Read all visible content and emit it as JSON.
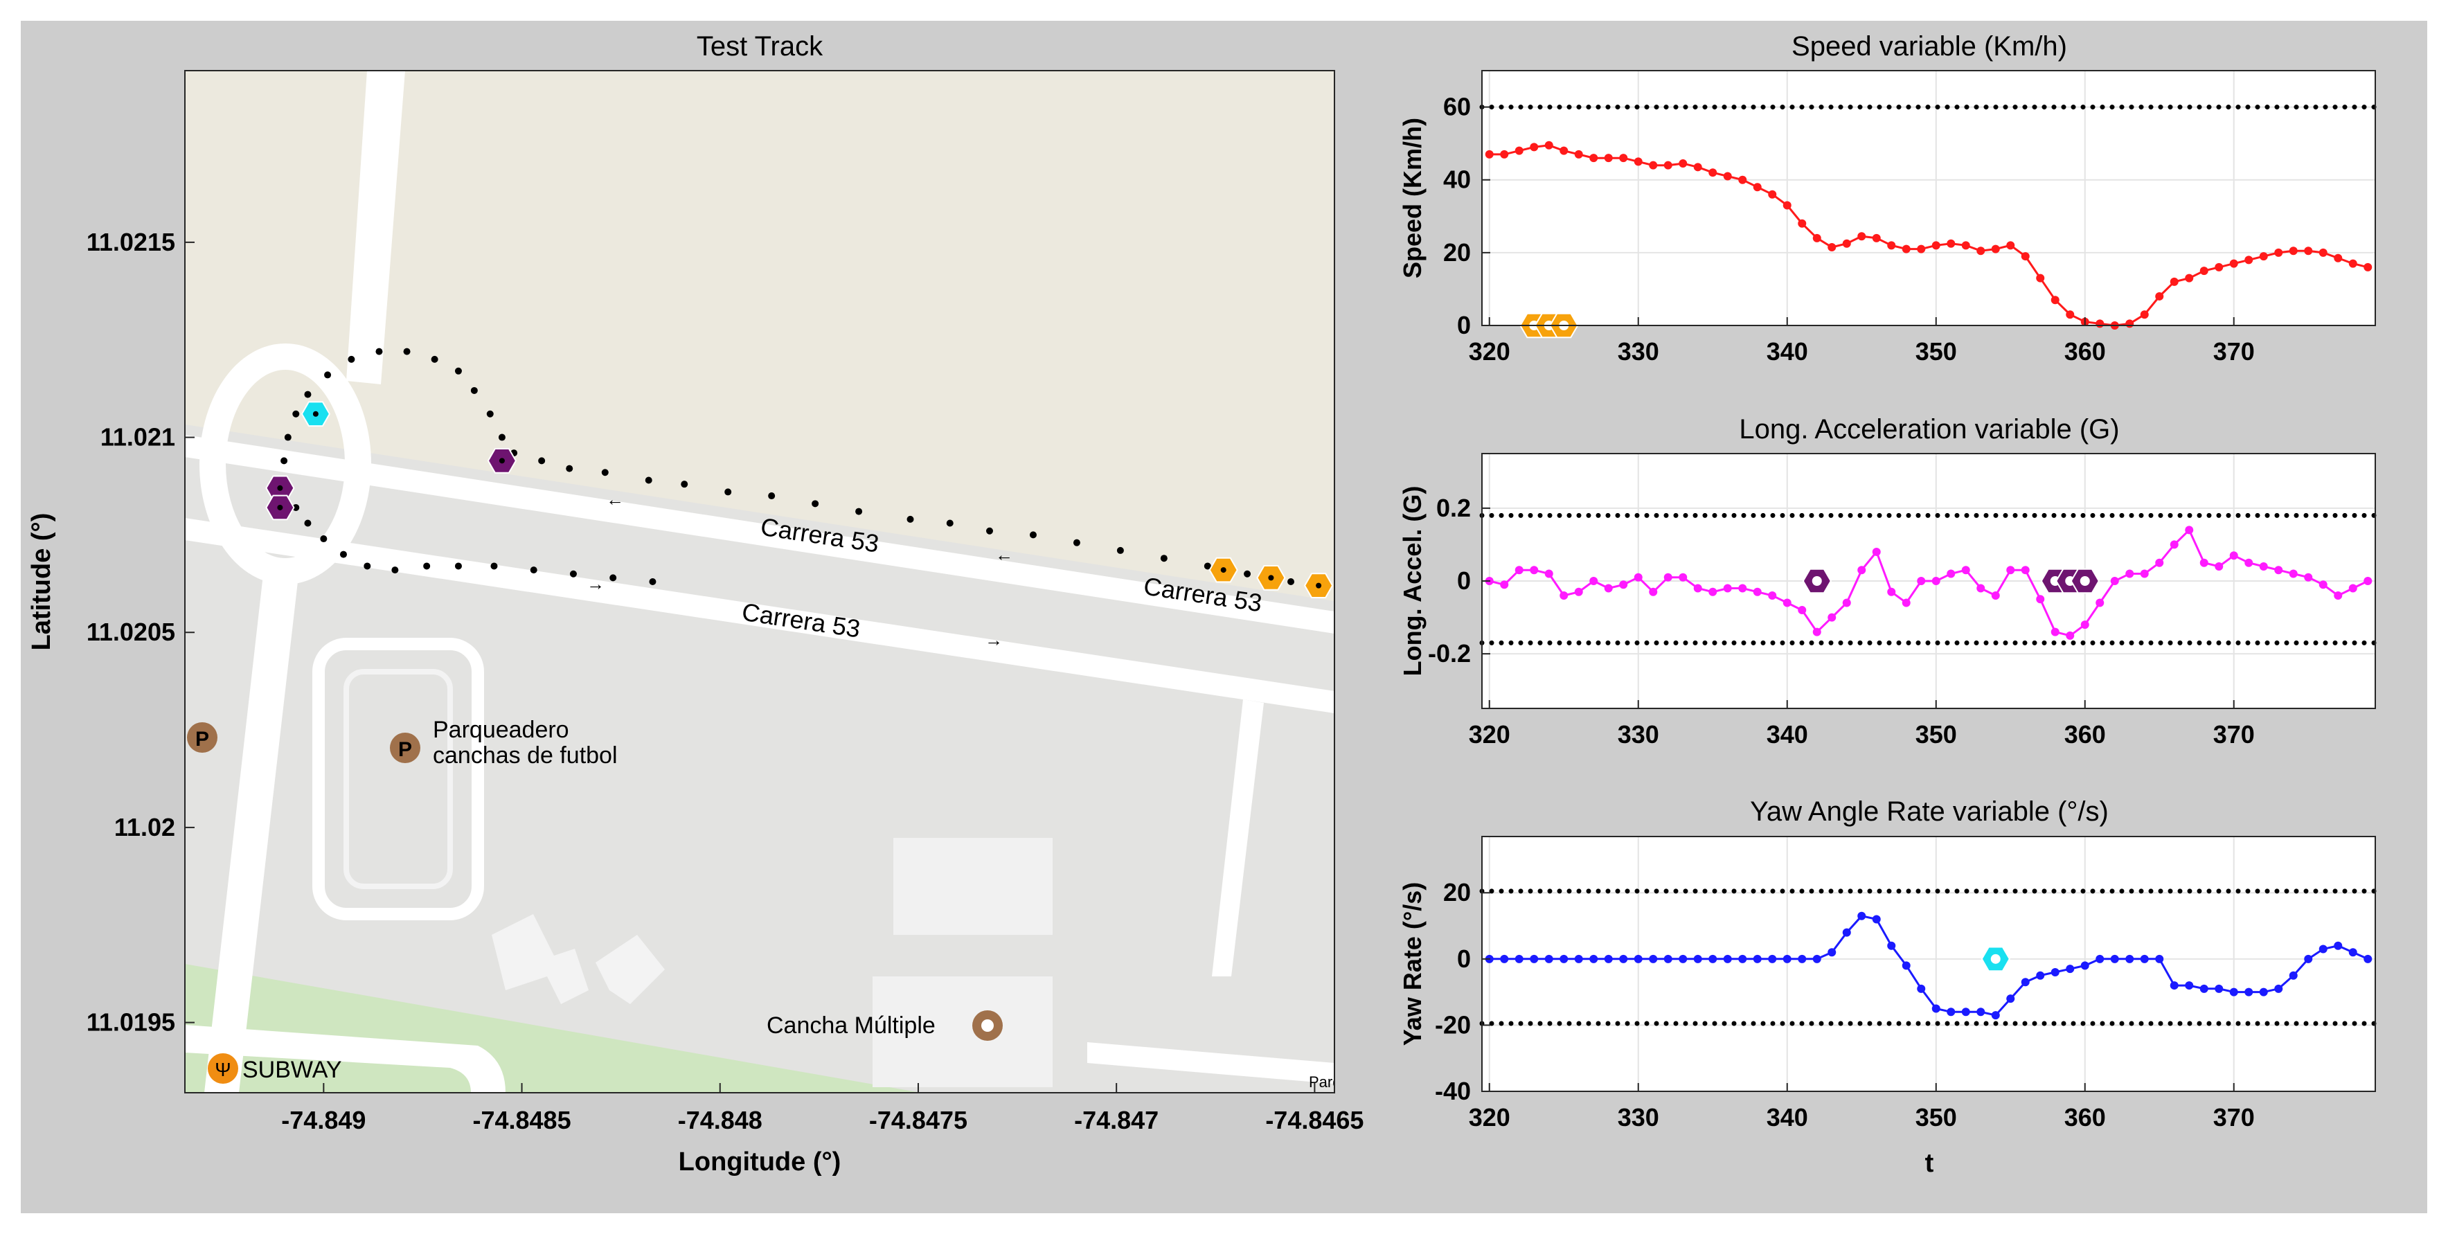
{
  "chart_data": [
    {
      "type": "scatter",
      "title": "Test Track",
      "xlabel": "Longitude (°)",
      "ylabel": "Latitude (°)",
      "xlim": [
        -74.84935,
        -74.84645
      ],
      "ylim": [
        11.01932,
        11.02194
      ],
      "xticks": [
        -74.849,
        -74.8485,
        -74.848,
        -74.8475,
        -74.847,
        -74.8465
      ],
      "xtick_labels": [
        "-74.849",
        "-74.8485",
        "-74.848",
        "-74.8475",
        "-74.847",
        "-74.8465"
      ],
      "yticks": [
        11.0195,
        11.02,
        11.0205,
        11.021,
        11.0215
      ],
      "ytick_labels": [
        "11.0195",
        "11.02",
        "11.0205",
        "11.021",
        "11.0215"
      ],
      "basemap": {
        "colors": {
          "land": "#ece9de",
          "ground": "#e3e3e1",
          "road": "#ffffff",
          "grass": "#cfe6c0",
          "poi": "#a0714b",
          "subway": "#f08d12"
        },
        "labels": {
          "road_upper": "Carrera 53",
          "road_lower": "Carrera 53",
          "road_right": "Carrera 53",
          "parking_name": "Parqueadero",
          "parking_name_2": "canchas de futbol",
          "sports": "Cancha Múltiple",
          "restaurant": "SUBWAY",
          "edge_label": "Parqu"
        }
      },
      "track": {
        "color": "#000000",
        "points": [
          [
            -74.84817,
            11.02063
          ],
          [
            -74.84827,
            11.02064
          ],
          [
            -74.84837,
            11.02065
          ],
          [
            -74.84847,
            11.02066
          ],
          [
            -74.84857,
            11.02067
          ],
          [
            -74.84866,
            11.02067
          ],
          [
            -74.84874,
            11.02067
          ],
          [
            -74.84882,
            11.02066
          ],
          [
            -74.84889,
            11.02067
          ],
          [
            -74.84895,
            11.0207
          ],
          [
            -74.849,
            11.02074
          ],
          [
            -74.84904,
            11.02078
          ],
          [
            -74.84907,
            11.02082
          ],
          [
            -74.84909,
            11.02088
          ],
          [
            -74.8491,
            11.02094
          ],
          [
            -74.84909,
            11.021
          ],
          [
            -74.84907,
            11.02106
          ],
          [
            -74.84904,
            11.02111
          ],
          [
            -74.84899,
            11.02116
          ],
          [
            -74.84893,
            11.0212
          ],
          [
            -74.84886,
            11.02122
          ],
          [
            -74.84879,
            11.02122
          ],
          [
            -74.84872,
            11.0212
          ],
          [
            -74.84866,
            11.02117
          ],
          [
            -74.84862,
            11.02112
          ],
          [
            -74.84858,
            11.02106
          ],
          [
            -74.84855,
            11.021
          ],
          [
            -74.84852,
            11.02096
          ],
          [
            -74.84845,
            11.02094
          ],
          [
            -74.84838,
            11.02092
          ],
          [
            -74.84829,
            11.02091
          ],
          [
            -74.84818,
            11.02089
          ],
          [
            -74.84809,
            11.02088
          ],
          [
            -74.84798,
            11.02086
          ],
          [
            -74.84787,
            11.02085
          ],
          [
            -74.84776,
            11.02083
          ],
          [
            -74.84765,
            11.02081
          ],
          [
            -74.84752,
            11.02079
          ],
          [
            -74.84742,
            11.02078
          ],
          [
            -74.84732,
            11.02076
          ],
          [
            -74.84721,
            11.02075
          ],
          [
            -74.8471,
            11.02073
          ],
          [
            -74.84699,
            11.02071
          ],
          [
            -74.84688,
            11.02069
          ],
          [
            -74.84677,
            11.02067
          ],
          [
            -74.84667,
            11.02065
          ],
          [
            -74.84656,
            11.02063
          ],
          [
            -74.84648,
            11.02062
          ]
        ],
        "markers": [
          {
            "lon": -74.84902,
            "lat": 11.02106,
            "color": "#19e0f0"
          },
          {
            "lon": -74.84911,
            "lat": 11.02087,
            "color": "#6e1470"
          },
          {
            "lon": -74.84911,
            "lat": 11.02082,
            "color": "#6e1470"
          },
          {
            "lon": -74.84855,
            "lat": 11.02094,
            "color": "#6e1470"
          },
          {
            "lon": -74.84673,
            "lat": 11.02066,
            "color": "#f7a20c"
          },
          {
            "lon": -74.84661,
            "lat": 11.02064,
            "color": "#f7a20c"
          },
          {
            "lon": -74.84649,
            "lat": 11.02062,
            "color": "#f7a20c"
          }
        ]
      }
    },
    {
      "type": "line",
      "title": "Speed variable (Km/h)",
      "xlabel": "",
      "ylabel": "Speed (Km/h)",
      "xlim": [
        319.5,
        379.5
      ],
      "ylim": [
        0,
        70
      ],
      "xticks": [
        320,
        330,
        340,
        350,
        360,
        370
      ],
      "yticks": [
        0,
        20,
        40,
        60
      ],
      "grid": true,
      "thresholds": [
        60
      ],
      "series": [
        {
          "color": "#ff1a1a",
          "x": [
            320,
            321,
            322,
            323,
            324,
            325,
            326,
            327,
            328,
            329,
            330,
            331,
            332,
            333,
            334,
            335,
            336,
            337,
            338,
            339,
            340,
            341,
            342,
            343,
            344,
            345,
            346,
            347,
            348,
            349,
            350,
            351,
            352,
            353,
            354,
            355,
            356,
            357,
            358,
            359,
            360,
            361,
            362,
            363,
            364,
            365,
            366,
            367,
            368,
            369,
            370,
            371,
            372,
            373,
            374,
            375,
            376,
            377,
            378,
            379
          ],
          "values": [
            47,
            47,
            48,
            49,
            49.5,
            48,
            47,
            46,
            46,
            46,
            45,
            44,
            44,
            44.5,
            43.5,
            42,
            41,
            40,
            38,
            36,
            33,
            28,
            24,
            21.5,
            22.5,
            24.5,
            24,
            22,
            21,
            21,
            22,
            22.5,
            22,
            20.5,
            21,
            22,
            19,
            13,
            7,
            3,
            1,
            0.5,
            0,
            0.5,
            3,
            8,
            12,
            13,
            15,
            16,
            17,
            18,
            19,
            20,
            20.5,
            20.5,
            20,
            18.5,
            17,
            16
          ]
        }
      ],
      "markers": [
        {
          "x": 323,
          "y": 0,
          "color": "#f7a20c"
        },
        {
          "x": 324,
          "y": 0,
          "color": "#f7a20c"
        },
        {
          "x": 325,
          "y": 0,
          "color": "#f7a20c"
        }
      ]
    },
    {
      "type": "line",
      "title": "Long. Acceleration variable (G)",
      "xlabel": "",
      "ylabel": "Long. Accel. (G)",
      "xlim": [
        319.5,
        379.5
      ],
      "ylim": [
        -0.35,
        0.35
      ],
      "xticks": [
        320,
        330,
        340,
        350,
        360,
        370
      ],
      "yticks": [
        -0.2,
        0,
        0.2
      ],
      "ytick_labels": [
        "-0.2",
        "0",
        "0.2"
      ],
      "grid": true,
      "thresholds": [
        0.18,
        -0.17
      ],
      "series": [
        {
          "color": "#ff1aff",
          "x": [
            320,
            321,
            322,
            323,
            324,
            325,
            326,
            327,
            328,
            329,
            330,
            331,
            332,
            333,
            334,
            335,
            336,
            337,
            338,
            339,
            340,
            341,
            342,
            343,
            344,
            345,
            346,
            347,
            348,
            349,
            350,
            351,
            352,
            353,
            354,
            355,
            356,
            357,
            358,
            359,
            360,
            361,
            362,
            363,
            364,
            365,
            366,
            367,
            368,
            369,
            370,
            371,
            372,
            373,
            374,
            375,
            376,
            377,
            378,
            379
          ],
          "values": [
            0,
            -0.01,
            0.03,
            0.03,
            0.02,
            -0.04,
            -0.03,
            0,
            -0.02,
            -0.01,
            0.01,
            -0.03,
            0.01,
            0.01,
            -0.02,
            -0.03,
            -0.02,
            -0.02,
            -0.03,
            -0.04,
            -0.06,
            -0.08,
            -0.14,
            -0.1,
            -0.06,
            0.03,
            0.08,
            -0.03,
            -0.06,
            0,
            0,
            0.02,
            0.03,
            -0.02,
            -0.04,
            0.03,
            0.03,
            -0.05,
            -0.14,
            -0.15,
            -0.12,
            -0.06,
            0,
            0.02,
            0.02,
            0.05,
            0.1,
            0.14,
            0.05,
            0.04,
            0.07,
            0.05,
            0.04,
            0.03,
            0.02,
            0.01,
            -0.01,
            -0.04,
            -0.02,
            0
          ]
        }
      ],
      "markers": [
        {
          "x": 342,
          "y": 0,
          "color": "#6e1470"
        },
        {
          "x": 358,
          "y": 0,
          "color": "#6e1470"
        },
        {
          "x": 359,
          "y": 0,
          "color": "#6e1470"
        },
        {
          "x": 360,
          "y": 0,
          "color": "#6e1470"
        }
      ]
    },
    {
      "type": "line",
      "title": "Yaw Angle Rate variable (°/s)",
      "xlabel": "t",
      "ylabel": "Yaw Rate (°/s)",
      "xlim": [
        319.5,
        379.5
      ],
      "ylim": [
        -40,
        37
      ],
      "xticks": [
        320,
        330,
        340,
        350,
        360,
        370
      ],
      "yticks": [
        -40,
        -20,
        0,
        20
      ],
      "grid": true,
      "thresholds": [
        20.5,
        -19.5
      ],
      "series": [
        {
          "color": "#1a1aff",
          "x": [
            320,
            321,
            322,
            323,
            324,
            325,
            326,
            327,
            328,
            329,
            330,
            331,
            332,
            333,
            334,
            335,
            336,
            337,
            338,
            339,
            340,
            341,
            342,
            343,
            344,
            345,
            346,
            347,
            348,
            349,
            350,
            351,
            352,
            353,
            354,
            355,
            356,
            357,
            358,
            359,
            360,
            361,
            362,
            363,
            364,
            365,
            366,
            367,
            368,
            369,
            370,
            371,
            372,
            373,
            374,
            375,
            376,
            377,
            378,
            379
          ],
          "values": [
            0,
            0,
            0,
            0,
            0,
            0,
            0,
            0,
            0,
            0,
            0,
            0,
            0,
            0,
            0,
            0,
            0,
            0,
            0,
            0,
            0,
            0,
            0,
            2,
            8,
            13,
            12,
            4,
            -2,
            -9,
            -15,
            -16,
            -16,
            -16,
            -17,
            -12,
            -7,
            -5,
            -4,
            -3,
            -2,
            0,
            0,
            0,
            0,
            0,
            -8,
            -8,
            -9,
            -9,
            -10,
            -10,
            -10,
            -9,
            -5,
            0,
            3,
            4,
            2,
            0
          ]
        }
      ],
      "markers": [
        {
          "x": 354,
          "y": 0,
          "color": "#19e0f0"
        }
      ]
    }
  ]
}
